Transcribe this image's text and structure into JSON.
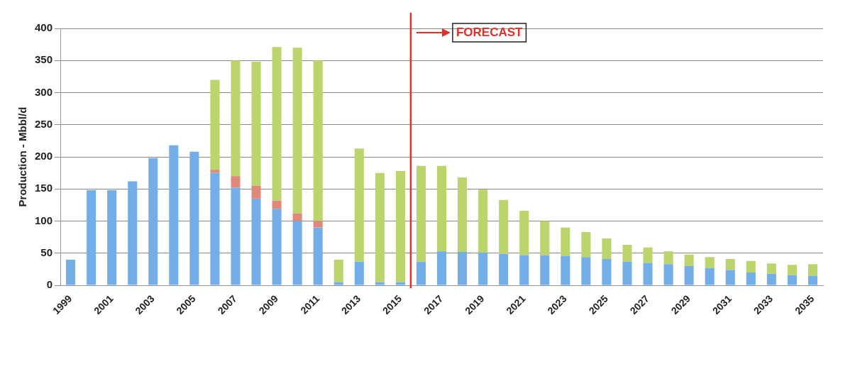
{
  "chart_data": {
    "type": "bar",
    "stacked": true,
    "ylabel": "Production - Mbbl/d",
    "categories": [
      "1999",
      null,
      "2001",
      null,
      "2003",
      null,
      "2005",
      null,
      "2007",
      null,
      "2009",
      null,
      "2011",
      null,
      "2013",
      null,
      "2015",
      null,
      "2017",
      null,
      "2019",
      null,
      "2021",
      null,
      "2023",
      null,
      "2025",
      null,
      "2027",
      null,
      "2029",
      null,
      "2031",
      null,
      "2033",
      null,
      "2035"
    ],
    "series": [
      {
        "color": "#74aee8",
        "values": [
          40,
          148,
          148,
          162,
          198,
          218,
          208,
          175,
          152,
          135,
          119,
          100,
          90,
          5,
          37,
          5,
          5,
          37,
          53,
          52,
          51,
          49,
          47,
          47,
          46,
          44,
          41,
          37,
          35,
          33,
          30,
          27,
          24,
          20,
          18,
          16,
          15
        ]
      },
      {
        "color": "#e0897a",
        "values": [
          0,
          0,
          0,
          0,
          0,
          0,
          0,
          5,
          18,
          20,
          13,
          12,
          10,
          0,
          0,
          0,
          0,
          0,
          0,
          0,
          0,
          0,
          0,
          0,
          0,
          0,
          0,
          0,
          0,
          0,
          0,
          0,
          0,
          0,
          0,
          0,
          0
        ]
      },
      {
        "color": "#bcd46c",
        "values": [
          0,
          0,
          0,
          0,
          0,
          0,
          0,
          140,
          180,
          193,
          239,
          258,
          250,
          35,
          176,
          170,
          173,
          149,
          133,
          116,
          98,
          84,
          69,
          53,
          44,
          39,
          32,
          26,
          24,
          20,
          18,
          17,
          17,
          18,
          16,
          16,
          18
        ]
      }
    ],
    "ylim": [
      0,
      400
    ],
    "yticks": [
      0,
      50,
      100,
      150,
      200,
      250,
      300,
      350,
      400
    ],
    "grid": "y",
    "legend": false,
    "ref_lines": [
      {
        "axis": "x",
        "value": "2015",
        "label": "FORECAST",
        "color": "#e0302a"
      }
    ]
  }
}
